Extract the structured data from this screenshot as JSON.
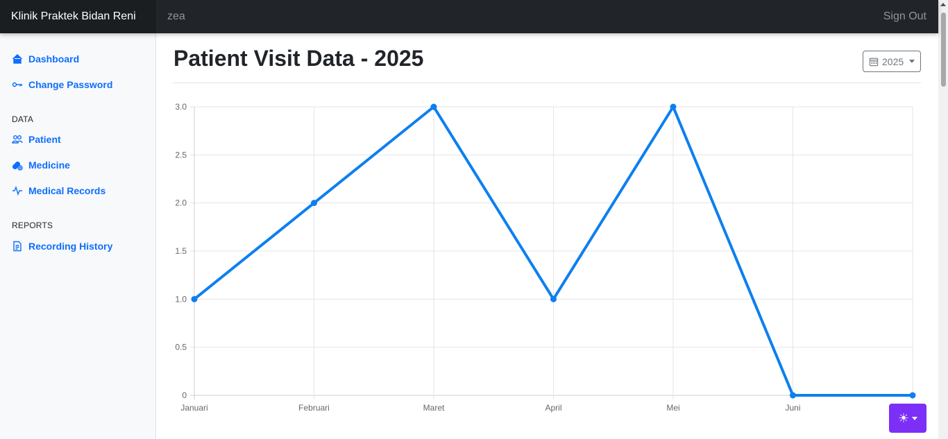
{
  "app": {
    "brand": "Klinik Praktek Bidan Reni",
    "search_value": "zea",
    "signout_label": "Sign Out"
  },
  "sidebar": {
    "items": [
      {
        "label": "Dashboard",
        "icon": "house-icon"
      },
      {
        "label": "Change Password",
        "icon": "key-icon"
      }
    ],
    "data_heading": "DATA",
    "data_items": [
      {
        "label": "Patient",
        "icon": "people-icon"
      },
      {
        "label": "Medicine",
        "icon": "capsule-icon"
      },
      {
        "label": "Medical Records",
        "icon": "activity-icon"
      }
    ],
    "reports_heading": "REPORTS",
    "report_items": [
      {
        "label": "Recording History",
        "icon": "file-text-icon"
      }
    ]
  },
  "main": {
    "title": "Patient Visit Data - 2025",
    "year_selected": "2025"
  },
  "colors": {
    "accent": "#0d6efd",
    "line": "#0d7ff0",
    "theme_button": "#7b2ff7",
    "topbar": "#212529"
  },
  "chart_data": {
    "type": "line",
    "categories": [
      "Januari",
      "Februari",
      "Maret",
      "April",
      "Mei",
      "Juni",
      ""
    ],
    "values": [
      1,
      2,
      3,
      1,
      3,
      0,
      0
    ],
    "y_ticks": [
      "0",
      "0.5",
      "1.0",
      "1.5",
      "2.0",
      "2.5",
      "3.0"
    ],
    "ylim": [
      0,
      3
    ],
    "grid": true,
    "title": "",
    "xlabel": "",
    "ylabel": ""
  }
}
